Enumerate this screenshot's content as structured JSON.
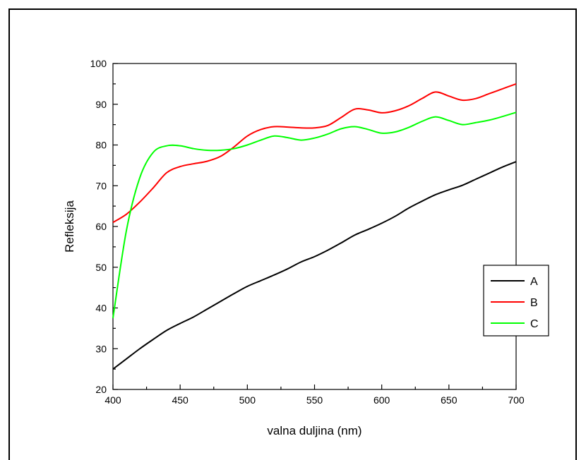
{
  "chart_data": {
    "type": "line",
    "title": "",
    "xlabel": "valna duljina (nm)",
    "ylabel": "Refleksija",
    "xlim": [
      400,
      700
    ],
    "ylim": [
      20,
      100
    ],
    "x_ticks": [
      400,
      450,
      500,
      550,
      600,
      650,
      700
    ],
    "y_ticks": [
      20,
      30,
      40,
      50,
      60,
      70,
      80,
      90,
      100
    ],
    "grid": false,
    "legend_position": "right",
    "x": [
      400,
      410,
      420,
      430,
      440,
      450,
      460,
      470,
      480,
      490,
      500,
      510,
      520,
      530,
      540,
      550,
      560,
      570,
      580,
      590,
      600,
      610,
      620,
      630,
      640,
      650,
      660,
      670,
      680,
      690,
      700
    ],
    "series": [
      {
        "name": "A",
        "color": "#000000",
        "values": [
          25,
          27.5,
          30,
          32.3,
          34.5,
          36.2,
          37.8,
          39.7,
          41.6,
          43.5,
          45.3,
          46.7,
          48.1,
          49.6,
          51.3,
          52.6,
          54.2,
          56,
          57.9,
          59.3,
          60.8,
          62.5,
          64.5,
          66.2,
          67.8,
          69,
          70.1,
          71.6,
          73.1,
          74.6,
          75.9
        ]
      },
      {
        "name": "B",
        "color": "#ff0000",
        "values": [
          61,
          63,
          66,
          69.5,
          73.2,
          74.7,
          75.4,
          76,
          77.2,
          79.5,
          82.2,
          83.8,
          84.5,
          84.4,
          84.2,
          84.2,
          84.8,
          86.8,
          88.8,
          88.6,
          87.9,
          88.4,
          89.6,
          91.4,
          93,
          92,
          91,
          91.4,
          92.6,
          93.8,
          95
        ]
      },
      {
        "name": "C",
        "color": "#00ff00",
        "values": [
          37.5,
          59,
          72,
          78.2,
          79.8,
          79.8,
          79.1,
          78.7,
          78.7,
          79.1,
          80,
          81.2,
          82.2,
          81.8,
          81.2,
          81.7,
          82.7,
          84,
          84.5,
          83.8,
          82.9,
          83.2,
          84.3,
          85.8,
          86.9,
          86,
          85,
          85.5,
          86.1,
          87,
          88
        ]
      }
    ]
  }
}
